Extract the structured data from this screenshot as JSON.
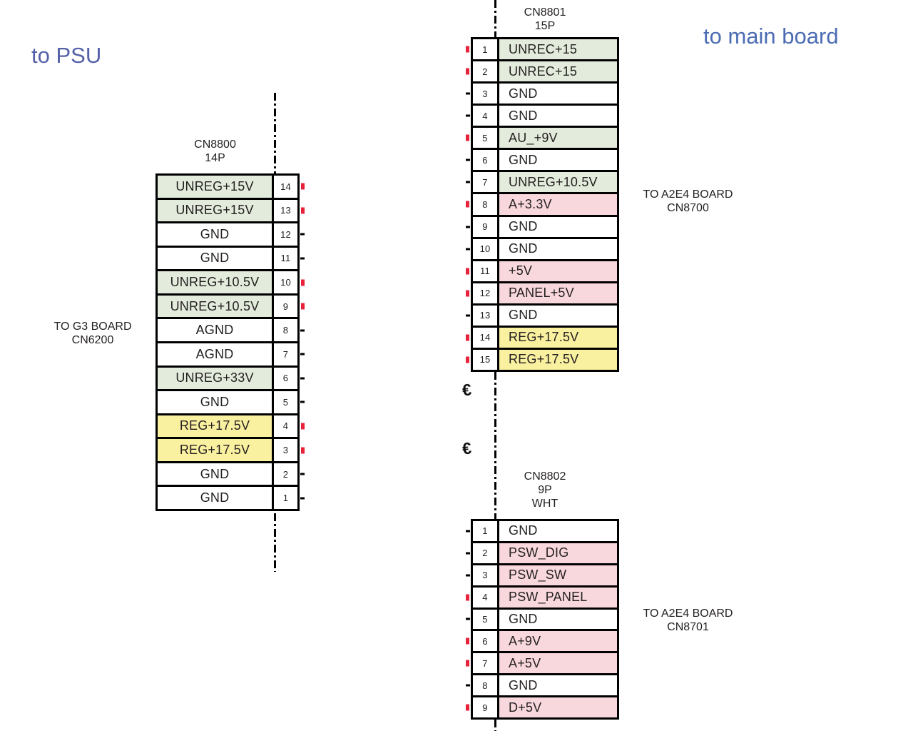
{
  "annotations": {
    "psu": {
      "text": "to PSU",
      "color": "#5561a9"
    },
    "main_board": {
      "text": "to main board",
      "color": "#4c6cb3"
    }
  },
  "symbols": {
    "wire_break": "€"
  },
  "colors": {
    "green": "#e3ecdc",
    "pink": "#f8d8dc",
    "yellow": "#f9f0a0",
    "white": "#ffffff",
    "red_mark": "#e8223b"
  },
  "connectors": [
    {
      "name": "CN8800",
      "header": [
        "CN8800",
        "14P"
      ],
      "board_label": [
        "TO G3 BOARD",
        "CN6200"
      ],
      "number_side": "right",
      "label_align": "center",
      "pins": [
        {
          "n": "14",
          "label": "UNREG+15V",
          "fill": "green",
          "mark": "red"
        },
        {
          "n": "13",
          "label": "UNREG+15V",
          "fill": "green",
          "mark": "red"
        },
        {
          "n": "12",
          "label": "GND",
          "fill": "white",
          "mark": "black"
        },
        {
          "n": "11",
          "label": "GND",
          "fill": "white",
          "mark": "black"
        },
        {
          "n": "10",
          "label": "UNREG+10.5V",
          "fill": "green",
          "mark": "red"
        },
        {
          "n": "9",
          "label": "UNREG+10.5V",
          "fill": "green",
          "mark": "red"
        },
        {
          "n": "8",
          "label": "AGND",
          "fill": "white",
          "mark": "black"
        },
        {
          "n": "7",
          "label": "AGND",
          "fill": "white",
          "mark": "black"
        },
        {
          "n": "6",
          "label": "UNREG+33V",
          "fill": "green",
          "mark": "black"
        },
        {
          "n": "5",
          "label": "GND",
          "fill": "white",
          "mark": "black"
        },
        {
          "n": "4",
          "label": "REG+17.5V",
          "fill": "yellow",
          "mark": "red"
        },
        {
          "n": "3",
          "label": "REG+17.5V",
          "fill": "yellow",
          "mark": "red"
        },
        {
          "n": "2",
          "label": "GND",
          "fill": "white",
          "mark": "black"
        },
        {
          "n": "1",
          "label": "GND",
          "fill": "white",
          "mark": "black"
        }
      ]
    },
    {
      "name": "CN8801",
      "header": [
        "CN8801",
        "15P"
      ],
      "board_label": [
        "TO A2E4 BOARD",
        "CN8700"
      ],
      "number_side": "left",
      "label_align": "left",
      "pins": [
        {
          "n": "1",
          "label": "UNREC+15",
          "fill": "green",
          "mark": "red"
        },
        {
          "n": "2",
          "label": "UNREC+15",
          "fill": "green",
          "mark": "red"
        },
        {
          "n": "3",
          "label": "GND",
          "fill": "white",
          "mark": "black"
        },
        {
          "n": "4",
          "label": "GND",
          "fill": "white",
          "mark": "black"
        },
        {
          "n": "5",
          "label": "AU_+9V",
          "fill": "green",
          "mark": "red"
        },
        {
          "n": "6",
          "label": "GND",
          "fill": "white",
          "mark": "black"
        },
        {
          "n": "7",
          "label": "UNREG+10.5V",
          "fill": "green",
          "mark": "black"
        },
        {
          "n": "8",
          "label": "A+3.3V",
          "fill": "pink",
          "mark": "red"
        },
        {
          "n": "9",
          "label": "GND",
          "fill": "white",
          "mark": "black"
        },
        {
          "n": "10",
          "label": "GND",
          "fill": "white",
          "mark": "black"
        },
        {
          "n": "11",
          "label": "+5V",
          "fill": "pink",
          "mark": "red"
        },
        {
          "n": "12",
          "label": "PANEL+5V",
          "fill": "pink",
          "mark": "red"
        },
        {
          "n": "13",
          "label": "GND",
          "fill": "white",
          "mark": "black"
        },
        {
          "n": "14",
          "label": "REG+17.5V",
          "fill": "yellow",
          "mark": "red"
        },
        {
          "n": "15",
          "label": "REG+17.5V",
          "fill": "yellow",
          "mark": "red"
        }
      ]
    },
    {
      "name": "CN8802",
      "header": [
        "CN8802",
        "9P",
        "WHT"
      ],
      "board_label": [
        "TO A2E4 BOARD",
        "CN8701"
      ],
      "number_side": "left",
      "label_align": "left",
      "pins": [
        {
          "n": "1",
          "label": "GND",
          "fill": "white",
          "mark": "black"
        },
        {
          "n": "2",
          "label": "PSW_DIG",
          "fill": "pink",
          "mark": "black"
        },
        {
          "n": "3",
          "label": "PSW_SW",
          "fill": "pink",
          "mark": "black"
        },
        {
          "n": "4",
          "label": "PSW_PANEL",
          "fill": "pink",
          "mark": "red"
        },
        {
          "n": "5",
          "label": "GND",
          "fill": "white",
          "mark": "black"
        },
        {
          "n": "6",
          "label": "A+9V",
          "fill": "pink",
          "mark": "red"
        },
        {
          "n": "7",
          "label": "A+5V",
          "fill": "pink",
          "mark": "red"
        },
        {
          "n": "8",
          "label": "GND",
          "fill": "white",
          "mark": "black"
        },
        {
          "n": "9",
          "label": "D+5V",
          "fill": "pink",
          "mark": "red"
        }
      ]
    }
  ]
}
